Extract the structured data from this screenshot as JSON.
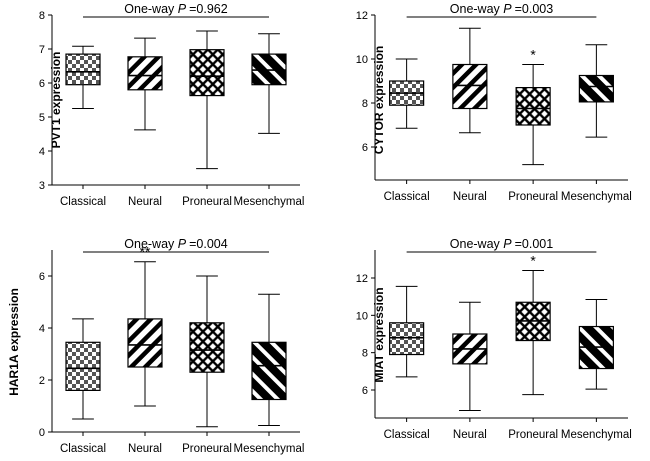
{
  "chart_data": [
    {
      "type": "boxplot",
      "ylabel": "PVT1  expression",
      "ylim": [
        3,
        8
      ],
      "yticks": [
        3,
        4,
        5,
        6,
        7,
        8
      ],
      "test_prefix": "One-way",
      "test_stat": "P",
      "test_value": "=0.962",
      "categories": [
        "Classical",
        "Neural",
        "Proneural",
        "Mesenchymal"
      ],
      "boxes": [
        {
          "min": 5.25,
          "q1": 5.95,
          "median": 6.33,
          "q3": 6.85,
          "max": 7.08,
          "sig": ""
        },
        {
          "min": 4.62,
          "q1": 5.8,
          "median": 6.22,
          "q3": 6.77,
          "max": 7.32,
          "sig": ""
        },
        {
          "min": 3.48,
          "q1": 5.63,
          "median": 6.2,
          "q3": 6.98,
          "max": 7.53,
          "sig": ""
        },
        {
          "min": 4.52,
          "q1": 5.95,
          "median": 6.38,
          "q3": 6.85,
          "max": 7.45,
          "sig": ""
        }
      ]
    },
    {
      "type": "boxplot",
      "ylabel": "CYTOR expression",
      "ylim": [
        4.5,
        12
      ],
      "yticks": [
        6,
        8,
        10,
        12
      ],
      "test_prefix": "One-way",
      "test_stat": "P",
      "test_value": "=0.003",
      "categories": [
        "Classical",
        "Neural",
        "Proneural",
        "Mesenchymal"
      ],
      "boxes": [
        {
          "min": 6.85,
          "q1": 7.9,
          "median": 8.45,
          "q3": 9.0,
          "max": 10.0,
          "sig": ""
        },
        {
          "min": 6.65,
          "q1": 7.75,
          "median": 8.8,
          "q3": 9.75,
          "max": 11.4,
          "sig": ""
        },
        {
          "min": 5.2,
          "q1": 7.0,
          "median": 7.75,
          "q3": 8.7,
          "max": 9.75,
          "sig": "*"
        },
        {
          "min": 6.45,
          "q1": 8.05,
          "median": 8.75,
          "q3": 9.25,
          "max": 10.65,
          "sig": ""
        }
      ]
    },
    {
      "type": "boxplot",
      "ylabel": "HAR1A expression",
      "ylim": [
        0,
        7
      ],
      "yticks": [
        0,
        2,
        4,
        6
      ],
      "test_prefix": "One-way",
      "test_stat": "P",
      "test_value": "=0.004",
      "categories": [
        "Classical",
        "Neural",
        "Proneural",
        "Mesenchymal"
      ],
      "boxes": [
        {
          "min": 0.5,
          "q1": 1.6,
          "median": 2.45,
          "q3": 3.45,
          "max": 4.35,
          "sig": ""
        },
        {
          "min": 1.0,
          "q1": 2.5,
          "median": 3.35,
          "q3": 4.35,
          "max": 6.55,
          "sig": "**"
        },
        {
          "min": 0.2,
          "q1": 2.3,
          "median": 3.15,
          "q3": 4.2,
          "max": 6.0,
          "sig": ""
        },
        {
          "min": 0.25,
          "q1": 1.25,
          "median": 2.55,
          "q3": 3.45,
          "max": 5.3,
          "sig": ""
        }
      ]
    },
    {
      "type": "boxplot",
      "ylabel": "MIAT  expression",
      "ylim": [
        4.5,
        13.5
      ],
      "yticks": [
        6,
        8,
        10,
        12
      ],
      "test_prefix": "One-way",
      "test_stat": "P",
      "test_value": "=0.001",
      "categories": [
        "Classical",
        "Neural",
        "Proneural",
        "Mesenchymal"
      ],
      "boxes": [
        {
          "min": 6.7,
          "q1": 7.9,
          "median": 8.8,
          "q3": 9.6,
          "max": 11.55,
          "sig": ""
        },
        {
          "min": 4.9,
          "q1": 7.4,
          "median": 8.2,
          "q3": 9.0,
          "max": 10.7,
          "sig": ""
        },
        {
          "min": 5.75,
          "q1": 8.65,
          "median": 9.7,
          "q3": 10.7,
          "max": 12.4,
          "sig": "*"
        },
        {
          "min": 6.05,
          "q1": 7.15,
          "median": 8.3,
          "q3": 9.4,
          "max": 10.85,
          "sig": ""
        }
      ]
    }
  ]
}
